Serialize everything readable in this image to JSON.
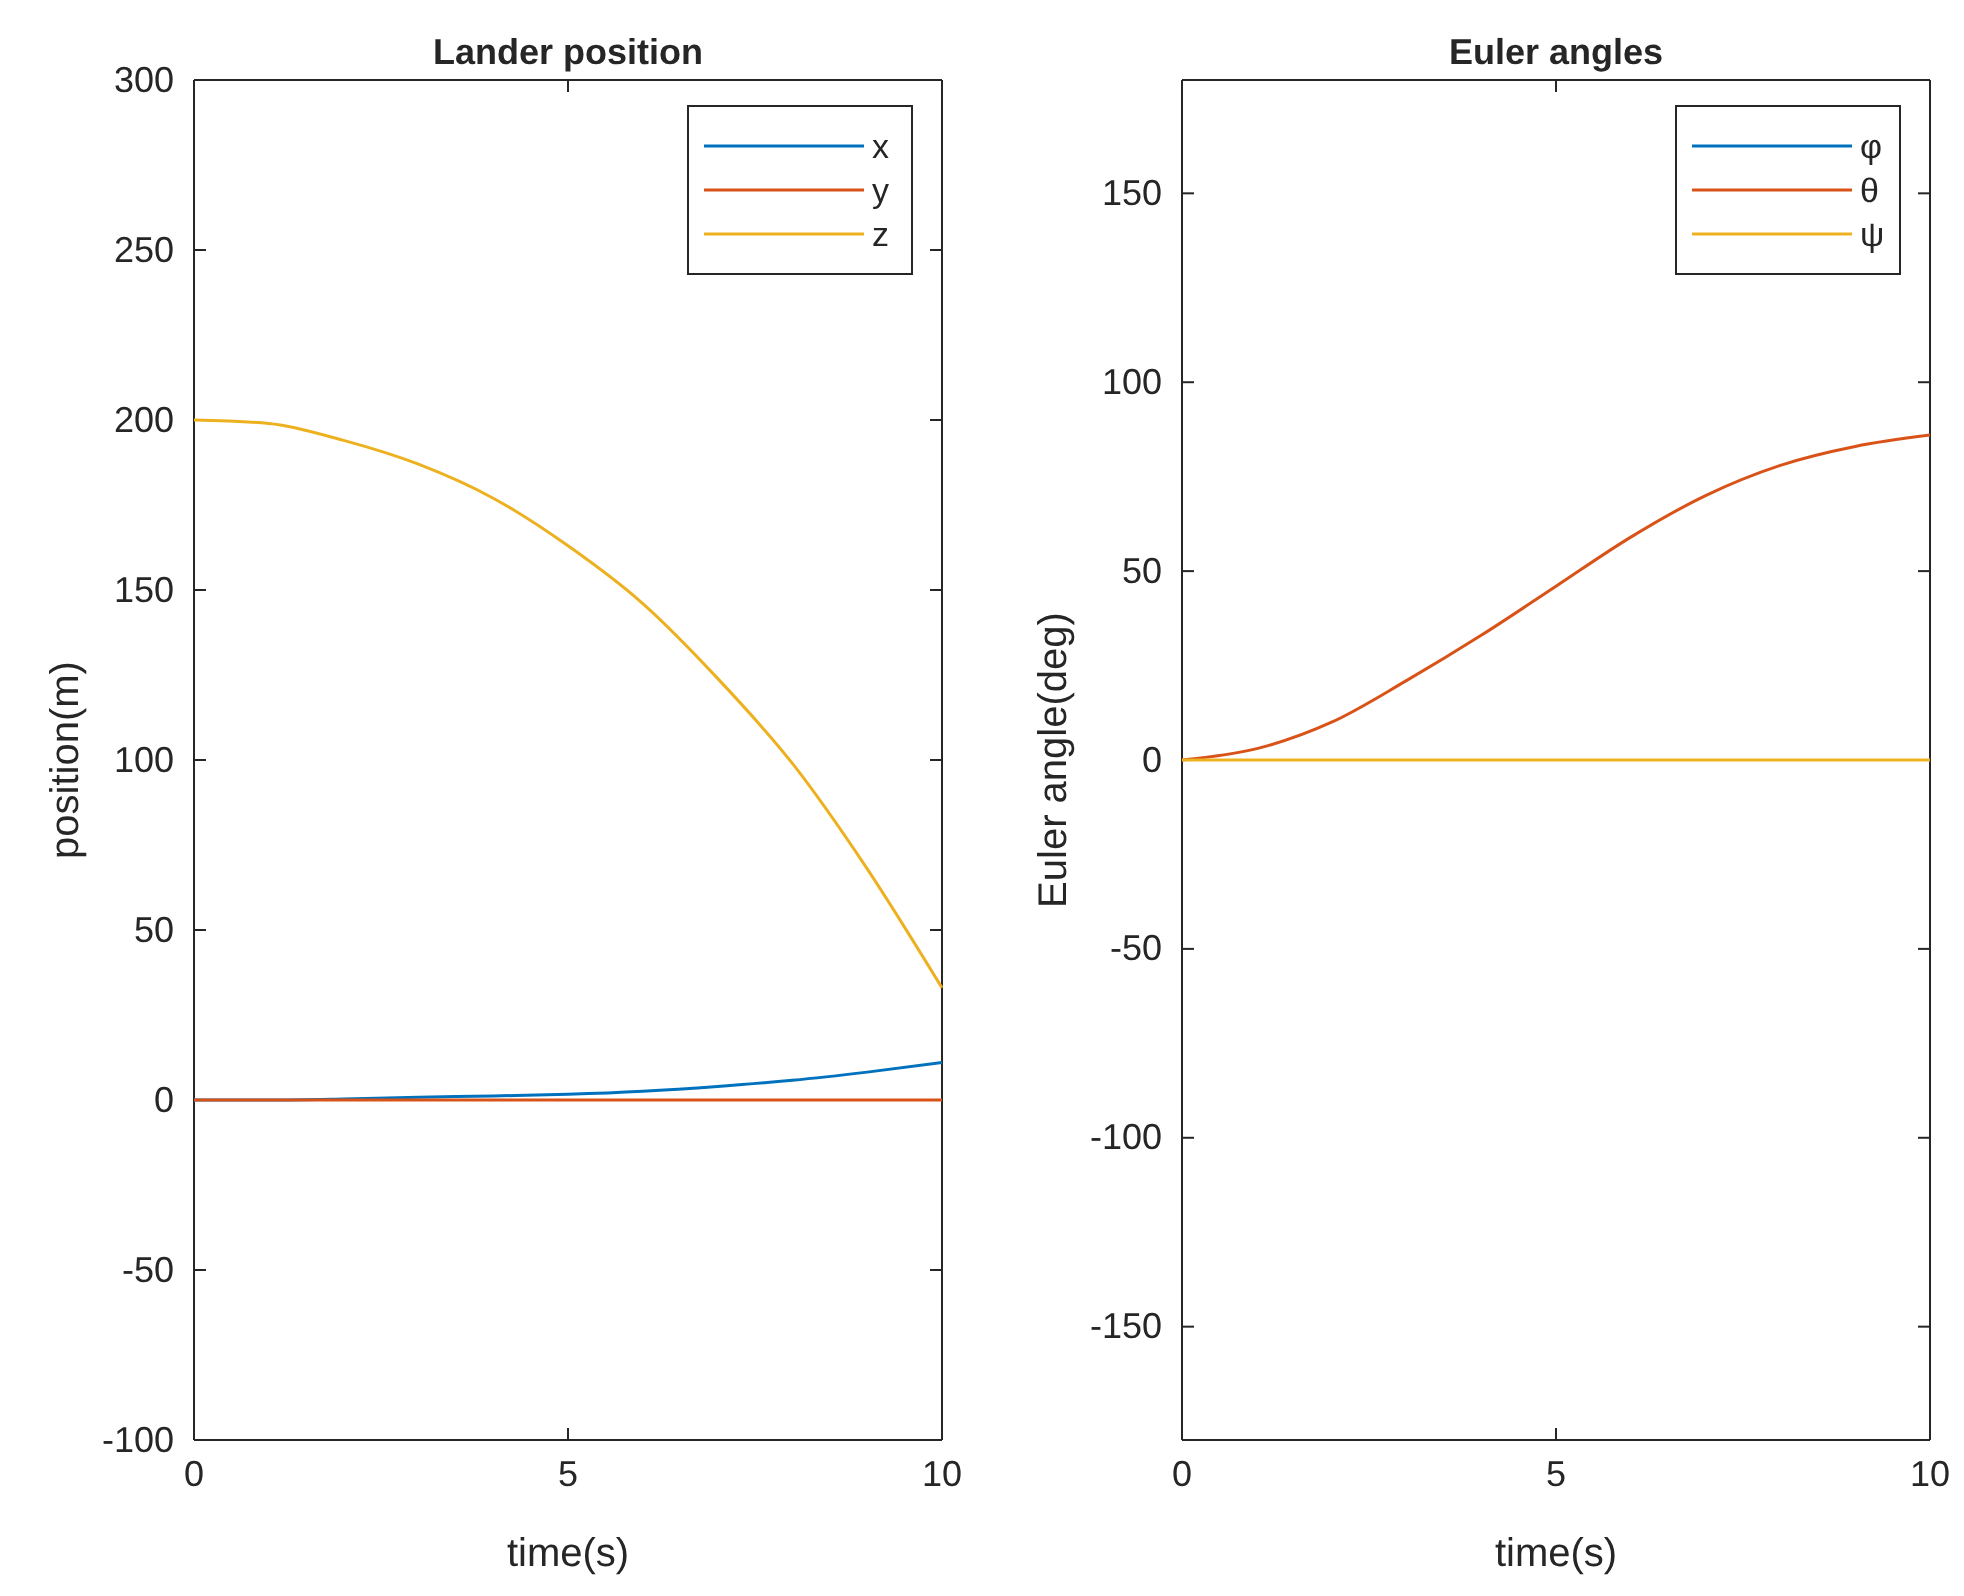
{
  "chart_data": [
    {
      "type": "line",
      "title": "Lander position",
      "xlabel": "time(s)",
      "ylabel": "position(m)",
      "x": [
        0,
        1,
        2,
        3,
        4,
        5,
        6,
        7,
        8,
        9,
        10
      ],
      "xlim": [
        0,
        10
      ],
      "xticks": [
        0,
        5,
        10
      ],
      "ylim": [
        -100,
        300
      ],
      "yticks": [
        -100,
        -50,
        0,
        50,
        100,
        150,
        200,
        250,
        300
      ],
      "legend": "top right",
      "series": [
        {
          "name": "x",
          "color": "#0072bd",
          "values": [
            0,
            0,
            0.3,
            0.8,
            1.2,
            1.7,
            2.6,
            4,
            5.8,
            8.2,
            11
          ]
        },
        {
          "name": "y",
          "color": "#d95319",
          "values": [
            0,
            0,
            0,
            0,
            0,
            0,
            0,
            0,
            0,
            0,
            0
          ]
        },
        {
          "name": "z",
          "color": "#edb120",
          "values": [
            200,
            199,
            194,
            187,
            177,
            163,
            146,
            124,
            99,
            68,
            33
          ]
        }
      ]
    },
    {
      "type": "line",
      "title": "Euler angles",
      "xlabel": "time(s)",
      "ylabel": "Euler angle(deg)",
      "x": [
        0,
        1,
        2,
        3,
        4,
        5,
        6,
        7,
        8,
        9,
        10
      ],
      "xlim": [
        0,
        10
      ],
      "xticks": [
        0,
        5,
        10
      ],
      "ylim": [
        -180,
        180
      ],
      "yticks": [
        -150,
        -100,
        -50,
        0,
        50,
        100,
        150
      ],
      "legend": "top right",
      "series": [
        {
          "name": "φ",
          "color": "#0072bd",
          "values": [
            null,
            null,
            null,
            null,
            null,
            null,
            null,
            null,
            null,
            null,
            null
          ]
        },
        {
          "name": "θ",
          "color": "#d95319",
          "values": [
            0,
            3,
            10,
            21,
            33,
            46,
            59,
            70,
            78,
            83,
            86
          ]
        },
        {
          "name": "ψ",
          "color": "#edb120",
          "values": [
            0,
            0,
            0,
            0,
            0,
            0,
            0,
            0,
            0,
            0,
            0
          ]
        }
      ]
    }
  ]
}
